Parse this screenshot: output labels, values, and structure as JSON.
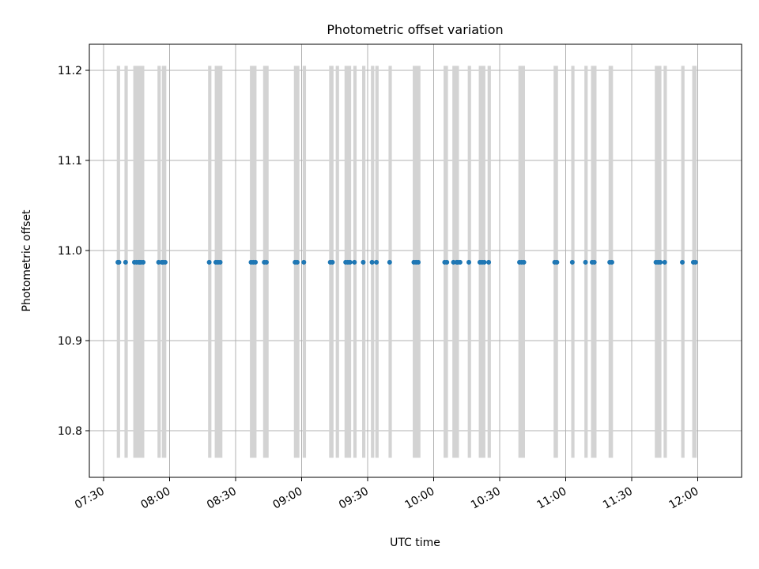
{
  "chart_data": {
    "type": "scatter",
    "title": "Photometric offset variation",
    "xlabel": "UTC time",
    "ylabel": "Photometric offset",
    "xlim": [
      "07:30",
      "12:30"
    ],
    "ylim": [
      10.75,
      11.23
    ],
    "x_ticks": [
      "07:30",
      "08:00",
      "08:30",
      "09:00",
      "09:30",
      "10:00",
      "10:30",
      "11:00",
      "11:30",
      "12:00"
    ],
    "y_ticks": [
      "10.8",
      "10.9",
      "11.0",
      "11.1",
      "11.2"
    ],
    "grid": true,
    "band_color": "#d3d3d3",
    "point_color": "#1f77b4",
    "band_ymin": 10.77,
    "band_ymax": 11.205,
    "series": [
      {
        "x": [
          "07:36:30",
          "07:37:00",
          "07:40:00",
          "07:44:00",
          "07:45:00",
          "07:46:00",
          "07:46:30",
          "07:47:00",
          "07:48:00",
          "07:55:00",
          "07:56:30",
          "07:57:00",
          "07:58:00",
          "08:18:00",
          "08:21:00",
          "08:22:00",
          "08:23:00",
          "08:37:00",
          "08:38:00",
          "08:39:00",
          "08:43:00",
          "08:44:00",
          "08:57:00",
          "08:58:00",
          "09:01:00",
          "09:13:00",
          "09:14:00",
          "09:20:00",
          "09:21:00",
          "09:22:00",
          "09:24:00",
          "09:28:00",
          "09:32:00",
          "09:34:00",
          "09:40:00",
          "09:51:00",
          "09:52:00",
          "09:53:00",
          "10:05:00",
          "10:06:00",
          "10:09:00",
          "10:10:30",
          "10:11:00",
          "10:12:00",
          "10:16:00",
          "10:21:00",
          "10:22:00",
          "10:23:00",
          "10:25:00",
          "10:39:00",
          "10:40:00",
          "10:41:00",
          "10:55:00",
          "10:56:00",
          "11:03:00",
          "11:09:00",
          "11:12:00",
          "11:13:00",
          "11:20:00",
          "11:21:00",
          "11:41:00",
          "11:42:00",
          "11:43:00",
          "11:45:00",
          "11:53:00",
          "11:58:00",
          "11:59:00"
        ],
        "y": [
          10.987,
          10.987,
          10.987,
          10.987,
          10.987,
          10.987,
          10.987,
          10.987,
          10.987,
          10.987,
          10.987,
          10.987,
          10.987,
          10.987,
          10.987,
          10.987,
          10.987,
          10.987,
          10.987,
          10.987,
          10.987,
          10.987,
          10.987,
          10.987,
          10.987,
          10.987,
          10.987,
          10.987,
          10.987,
          10.987,
          10.987,
          10.987,
          10.987,
          10.987,
          10.987,
          10.987,
          10.987,
          10.987,
          10.987,
          10.987,
          10.987,
          10.987,
          10.987,
          10.987,
          10.987,
          10.987,
          10.987,
          10.987,
          10.987,
          10.987,
          10.987,
          10.987,
          10.987,
          10.987,
          10.987,
          10.987,
          10.987,
          10.987,
          10.987,
          10.987,
          10.987,
          10.987,
          10.987,
          10.987,
          10.987,
          10.987,
          10.987
        ]
      }
    ],
    "bands": [
      [
        "07:36:00",
        "07:37:30"
      ],
      [
        "07:39:30",
        "07:41:00"
      ],
      [
        "07:43:30",
        "07:48:30"
      ],
      [
        "07:54:30",
        "07:56:00"
      ],
      [
        "07:56:30",
        "07:58:30"
      ],
      [
        "08:17:30",
        "08:19:00"
      ],
      [
        "08:20:30",
        "08:24:00"
      ],
      [
        "08:36:30",
        "08:39:30"
      ],
      [
        "08:42:30",
        "08:45:00"
      ],
      [
        "08:56:30",
        "08:59:00"
      ],
      [
        "09:00:30",
        "09:02:00"
      ],
      [
        "09:12:30",
        "09:14:30"
      ],
      [
        "09:15:30",
        "09:17:00"
      ],
      [
        "09:19:30",
        "09:22:30"
      ],
      [
        "09:23:30",
        "09:25:00"
      ],
      [
        "09:27:30",
        "09:29:00"
      ],
      [
        "09:31:30",
        "09:33:00"
      ],
      [
        "09:33:30",
        "09:35:00"
      ],
      [
        "09:39:30",
        "09:41:00"
      ],
      [
        "09:50:30",
        "09:54:00"
      ],
      [
        "10:04:30",
        "10:06:30"
      ],
      [
        "10:08:30",
        "10:11:30"
      ],
      [
        "10:15:30",
        "10:17:00"
      ],
      [
        "10:20:30",
        "10:23:30"
      ],
      [
        "10:24:30",
        "10:26:00"
      ],
      [
        "10:38:30",
        "10:41:30"
      ],
      [
        "10:54:30",
        "10:56:30"
      ],
      [
        "11:02:30",
        "11:04:00"
      ],
      [
        "11:08:30",
        "11:10:00"
      ],
      [
        "11:11:30",
        "11:14:00"
      ],
      [
        "11:19:30",
        "11:21:30"
      ],
      [
        "11:40:30",
        "11:43:30"
      ],
      [
        "11:44:30",
        "11:46:00"
      ],
      [
        "11:52:30",
        "11:54:00"
      ],
      [
        "11:57:30",
        "11:59:30"
      ]
    ]
  }
}
